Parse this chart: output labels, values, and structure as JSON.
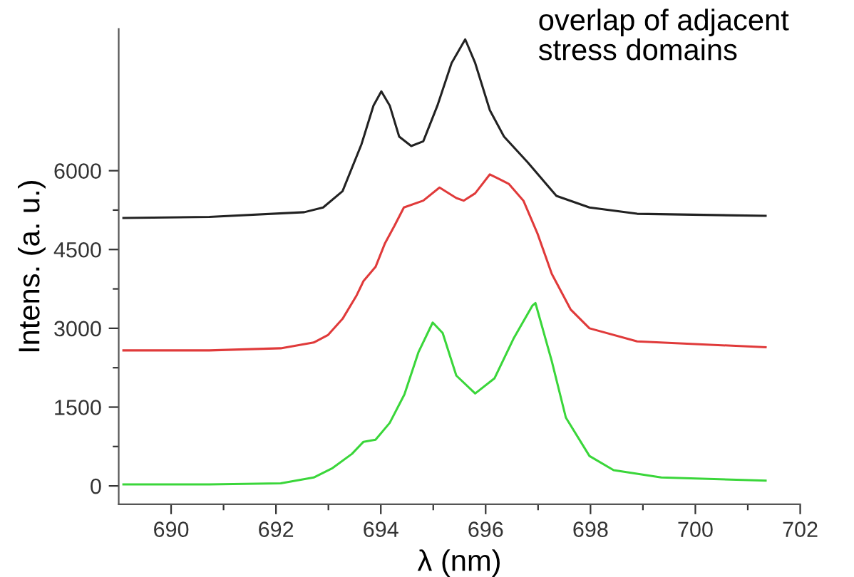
{
  "chart_data": {
    "type": "line",
    "xlabel": "λ (nm)",
    "ylabel": "Intens. (a. u.)",
    "annotations": [
      "overlap of adjacent\nstress domains"
    ],
    "xlim": [
      689,
      702
    ],
    "ylim": [
      -350,
      8700
    ],
    "xticks": [
      690,
      {
        "value": 691,
        "label": null
      },
      692,
      {
        "value": 693,
        "label": null
      },
      694,
      {
        "value": 695,
        "label": null
      },
      696,
      {
        "value": 697,
        "label": null
      },
      698,
      {
        "value": 699,
        "label": null
      },
      700,
      {
        "value": 701,
        "label": null
      },
      702
    ],
    "yticks": [
      0,
      {
        "value": 750,
        "label": null
      },
      1500,
      {
        "value": 2250,
        "label": null
      },
      3000,
      {
        "value": 3750,
        "label": null
      },
      4500,
      {
        "value": 5250,
        "label": null
      },
      6000
    ],
    "marker": "none",
    "line_style": "solid",
    "series": [
      {
        "color": "#222222",
        "x": [
          689.09,
          690.73,
          692.54,
          692.9,
          693.27,
          693.63,
          693.86,
          694.01,
          694.17,
          694.35,
          694.58,
          694.81,
          695.08,
          695.35,
          695.61,
          695.8,
          696.08,
          696.35,
          696.8,
          697.35,
          697.98,
          698.89,
          701.34
        ],
        "values": [
          5100,
          5120,
          5210,
          5300,
          5610,
          6500,
          7240,
          7510,
          7240,
          6650,
          6470,
          6560,
          7240,
          8050,
          8500,
          8050,
          7150,
          6650,
          6160,
          5520,
          5300,
          5180,
          5140
        ]
      },
      {
        "color": "#e03a3a",
        "x": [
          689.09,
          690.73,
          692.09,
          692.72,
          692.99,
          693.27,
          693.54,
          693.67,
          693.9,
          694.08,
          694.26,
          694.44,
          694.81,
          695.12,
          695.44,
          695.58,
          695.8,
          696.08,
          696.26,
          696.44,
          696.72,
          696.99,
          697.26,
          697.62,
          697.98,
          698.89,
          701.34
        ],
        "values": [
          2580,
          2580,
          2620,
          2730,
          2870,
          3180,
          3630,
          3900,
          4170,
          4620,
          4950,
          5300,
          5430,
          5680,
          5480,
          5430,
          5570,
          5930,
          5840,
          5750,
          5430,
          4800,
          4040,
          3360,
          3000,
          2750,
          2640
        ]
      },
      {
        "color": "#3ad63a",
        "x": [
          689.09,
          690.73,
          692.09,
          692.72,
          693.08,
          693.45,
          693.67,
          693.9,
          694.17,
          694.45,
          694.72,
          694.99,
          695.18,
          695.44,
          695.8,
          696.17,
          696.54,
          696.89,
          696.95,
          697.26,
          697.53,
          697.98,
          698.44,
          699.35,
          701.34
        ],
        "values": [
          30,
          30,
          50,
          160,
          340,
          610,
          840,
          880,
          1200,
          1740,
          2550,
          3110,
          2910,
          2100,
          1760,
          2050,
          2820,
          3430,
          3480,
          2380,
          1300,
          570,
          300,
          160,
          100
        ]
      }
    ]
  }
}
